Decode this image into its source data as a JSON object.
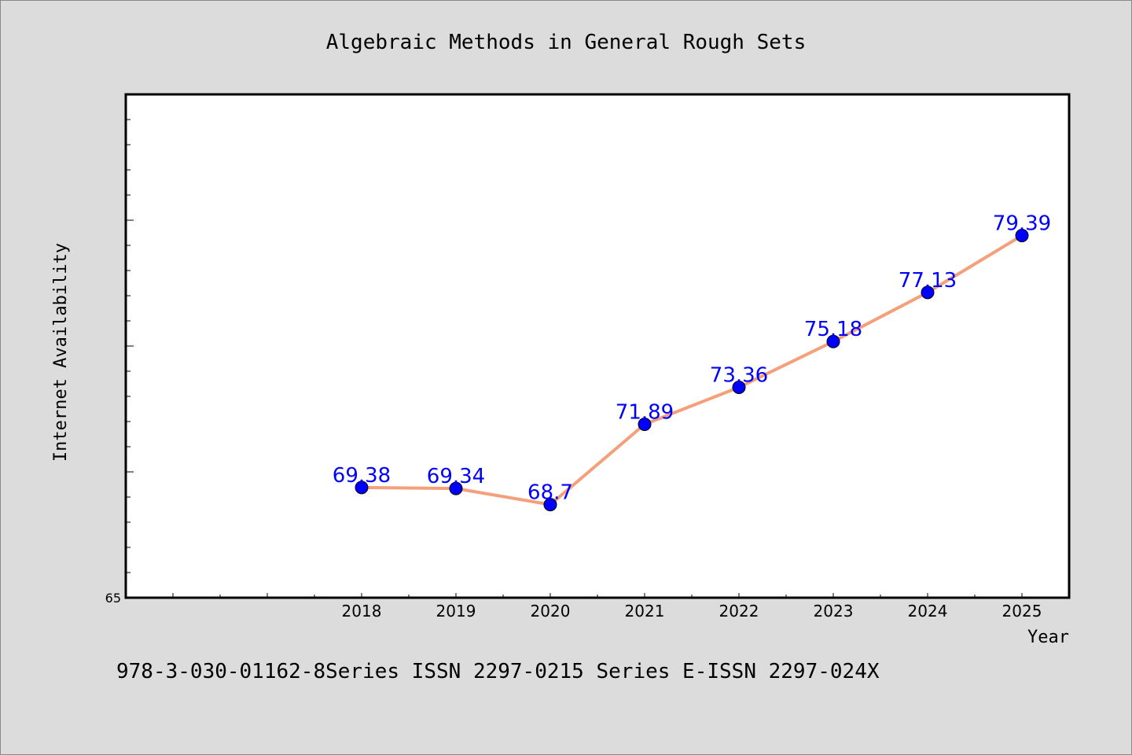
{
  "chart_data": {
    "type": "line",
    "title": "Algebraic Methods in General Rough Sets",
    "xlabel": "Year",
    "ylabel": "Internet Availability",
    "x": [
      "2018",
      "2019",
      "2020",
      "2021",
      "2022",
      "2023",
      "2024",
      "2025"
    ],
    "x_range": [
      2015.5,
      2025.5
    ],
    "y_range": [
      65,
      85
    ],
    "y_tick_labels": [
      "65"
    ],
    "series": [
      {
        "values": [
          69.38,
          69.34,
          68.7,
          71.89,
          73.36,
          75.18,
          77.13,
          79.39
        ],
        "data_labels": [
          "69.38",
          "69.34",
          "68.7",
          "71.89",
          "73.36",
          "75.18",
          "77.13",
          "79.39"
        ],
        "line_color": "#f4a07a",
        "marker_color": "#0000ff"
      }
    ],
    "grid": false,
    "legend": "none"
  },
  "footer": {
    "text": "978-3-030-01162-8Series ISSN 2297-0215 Series E-ISSN 2297-024X"
  },
  "colors": {
    "background": "#dcdcdc",
    "plot_background": "#ffffff",
    "label_color": "#0000ff"
  }
}
